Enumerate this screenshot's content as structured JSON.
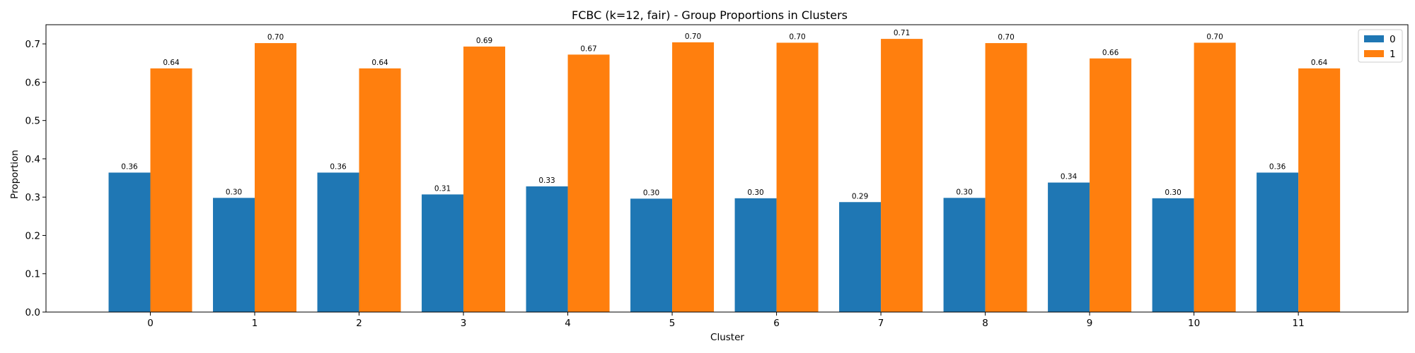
{
  "chart_data": {
    "type": "bar",
    "title": "FCBC (k=12, fair) - Group Proportions in Clusters",
    "xlabel": "Cluster",
    "ylabel": "Proportion",
    "categories": [
      "0",
      "1",
      "2",
      "3",
      "4",
      "5",
      "6",
      "7",
      "8",
      "9",
      "10",
      "11"
    ],
    "ylim": [
      0,
      0.75
    ],
    "yticks": [
      "0.0",
      "0.1",
      "0.2",
      "0.3",
      "0.4",
      "0.5",
      "0.6",
      "0.7"
    ],
    "grid": false,
    "legend_position": "top-right",
    "series": [
      {
        "name": "0",
        "color": "#1f77b4",
        "values": [
          0.364,
          0.298,
          0.364,
          0.307,
          0.328,
          0.296,
          0.297,
          0.287,
          0.298,
          0.338,
          0.297,
          0.364
        ],
        "labels": [
          "0.36",
          "0.30",
          "0.36",
          "0.31",
          "0.33",
          "0.30",
          "0.30",
          "0.29",
          "0.30",
          "0.34",
          "0.30",
          "0.36"
        ]
      },
      {
        "name": "1",
        "color": "#ff7f0e",
        "values": [
          0.636,
          0.702,
          0.636,
          0.693,
          0.672,
          0.704,
          0.703,
          0.713,
          0.702,
          0.662,
          0.703,
          0.636
        ],
        "labels": [
          "0.64",
          "0.70",
          "0.64",
          "0.69",
          "0.67",
          "0.70",
          "0.70",
          "0.71",
          "0.70",
          "0.66",
          "0.70",
          "0.64"
        ]
      }
    ]
  }
}
